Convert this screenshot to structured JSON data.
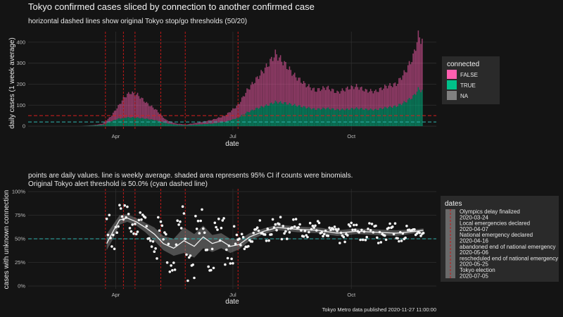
{
  "title": "Tokyo confirmed cases sliced by connection to another confirmed case",
  "caption": "Tokyo Metro data published 2020-11-27 11:00:00",
  "colors": {
    "false": "#ff5fb0",
    "true": "#00c08a",
    "na": "#808080",
    "threshold_red": "#d62020",
    "threshold_cyan": "#2fb5b0",
    "event_line": "#c01818"
  },
  "chart_data": [
    {
      "type": "area",
      "subtitle": "horizontal dashed lines show original Tokyo stop/go thresholds (50/20)",
      "xlabel": "date",
      "ylabel": "daily cases (1 week average)",
      "x_ticks": [
        "Apr",
        "Jul",
        "Oct"
      ],
      "x_tick_dates": [
        "2020-04-01",
        "2020-07-01",
        "2020-10-01"
      ],
      "xlim": [
        "2020-01-24",
        "2020-12-06"
      ],
      "y_ticks": [
        "0",
        "100",
        "200",
        "300",
        "400"
      ],
      "ylim": [
        -20,
        450
      ],
      "thresholds": [
        50,
        20
      ],
      "series_names": [
        "FALSE",
        "TRUE",
        "NA"
      ],
      "points": [
        {
          "date": "2020-03-15",
          "total": 5,
          "connected": 3
        },
        {
          "date": "2020-03-22",
          "total": 12,
          "connected": 6
        },
        {
          "date": "2020-03-28",
          "total": 45,
          "connected": 22
        },
        {
          "date": "2020-04-03",
          "total": 95,
          "connected": 35
        },
        {
          "date": "2020-04-08",
          "total": 140,
          "connected": 40
        },
        {
          "date": "2020-04-12",
          "total": 160,
          "connected": 42
        },
        {
          "date": "2020-04-18",
          "total": 150,
          "connected": 40
        },
        {
          "date": "2020-04-25",
          "total": 110,
          "connected": 35
        },
        {
          "date": "2020-05-02",
          "total": 80,
          "connected": 28
        },
        {
          "date": "2020-05-10",
          "total": 30,
          "connected": 14
        },
        {
          "date": "2020-05-18",
          "total": 12,
          "connected": 6
        },
        {
          "date": "2020-05-26",
          "total": 8,
          "connected": 4
        },
        {
          "date": "2020-06-05",
          "total": 18,
          "connected": 8
        },
        {
          "date": "2020-06-15",
          "total": 30,
          "connected": 12
        },
        {
          "date": "2020-06-25",
          "total": 50,
          "connected": 20
        },
        {
          "date": "2020-07-05",
          "total": 100,
          "connected": 40
        },
        {
          "date": "2020-07-12",
          "total": 170,
          "connected": 65
        },
        {
          "date": "2020-07-20",
          "total": 230,
          "connected": 85
        },
        {
          "date": "2020-07-28",
          "total": 290,
          "connected": 100
        },
        {
          "date": "2020-08-03",
          "total": 345,
          "connected": 115
        },
        {
          "date": "2020-08-10",
          "total": 300,
          "connected": 110
        },
        {
          "date": "2020-08-18",
          "total": 240,
          "connected": 100
        },
        {
          "date": "2020-08-26",
          "total": 200,
          "connected": 90
        },
        {
          "date": "2020-09-03",
          "total": 170,
          "connected": 80
        },
        {
          "date": "2020-09-12",
          "total": 185,
          "connected": 85
        },
        {
          "date": "2020-09-20",
          "total": 160,
          "connected": 78
        },
        {
          "date": "2020-09-28",
          "total": 180,
          "connected": 80
        },
        {
          "date": "2020-10-05",
          "total": 190,
          "connected": 85
        },
        {
          "date": "2020-10-12",
          "total": 170,
          "connected": 80
        },
        {
          "date": "2020-10-20",
          "total": 165,
          "connected": 78
        },
        {
          "date": "2020-10-28",
          "total": 190,
          "connected": 88
        },
        {
          "date": "2020-11-05",
          "total": 200,
          "connected": 95
        },
        {
          "date": "2020-11-12",
          "total": 260,
          "connected": 115
        },
        {
          "date": "2020-11-18",
          "total": 330,
          "connected": 140
        },
        {
          "date": "2020-11-22",
          "total": 430,
          "connected": 175
        },
        {
          "date": "2020-11-25",
          "total": 410,
          "connected": 170
        }
      ]
    },
    {
      "type": "scatter",
      "subtitle_lines": [
        "points are daily values. line is weekly average. shaded area represents 95% CI if counts were binomials.",
        "Original Tokyo alert threshold is 50.0% (cyan dashed line)"
      ],
      "xlabel": "date",
      "ylabel": "cases with unknown connection",
      "x_ticks": [
        "Apr",
        "Jul",
        "Oct"
      ],
      "x_tick_dates": [
        "2020-04-01",
        "2020-07-01",
        "2020-10-01"
      ],
      "xlim": [
        "2020-01-24",
        "2020-12-06"
      ],
      "y_ticks": [
        "0%",
        "25%",
        "50%",
        "75%",
        "100%"
      ],
      "ylim": [
        -0.03,
        1.03
      ],
      "threshold": 0.5,
      "average": [
        {
          "date": "2020-03-25",
          "y": 0.45,
          "lo": 0.38,
          "hi": 0.55
        },
        {
          "date": "2020-03-30",
          "y": 0.58,
          "lo": 0.5,
          "hi": 0.65
        },
        {
          "date": "2020-04-04",
          "y": 0.7,
          "lo": 0.65,
          "hi": 0.75
        },
        {
          "date": "2020-04-10",
          "y": 0.72,
          "lo": 0.68,
          "hi": 0.76
        },
        {
          "date": "2020-04-17",
          "y": 0.68,
          "lo": 0.64,
          "hi": 0.72
        },
        {
          "date": "2020-04-24",
          "y": 0.62,
          "lo": 0.57,
          "hi": 0.67
        },
        {
          "date": "2020-05-01",
          "y": 0.55,
          "lo": 0.48,
          "hi": 0.62
        },
        {
          "date": "2020-05-08",
          "y": 0.45,
          "lo": 0.38,
          "hi": 0.53
        },
        {
          "date": "2020-05-16",
          "y": 0.4,
          "lo": 0.32,
          "hi": 0.5
        },
        {
          "date": "2020-05-24",
          "y": 0.48,
          "lo": 0.35,
          "hi": 0.62
        },
        {
          "date": "2020-06-01",
          "y": 0.42,
          "lo": 0.3,
          "hi": 0.55
        },
        {
          "date": "2020-06-08",
          "y": 0.52,
          "lo": 0.4,
          "hi": 0.64
        },
        {
          "date": "2020-06-15",
          "y": 0.45,
          "lo": 0.36,
          "hi": 0.54
        },
        {
          "date": "2020-06-22",
          "y": 0.48,
          "lo": 0.4,
          "hi": 0.56
        },
        {
          "date": "2020-06-29",
          "y": 0.42,
          "lo": 0.35,
          "hi": 0.5
        },
        {
          "date": "2020-07-06",
          "y": 0.44,
          "lo": 0.39,
          "hi": 0.49
        },
        {
          "date": "2020-07-14",
          "y": 0.52,
          "lo": 0.48,
          "hi": 0.56
        },
        {
          "date": "2020-07-25",
          "y": 0.58,
          "lo": 0.55,
          "hi": 0.61
        },
        {
          "date": "2020-08-05",
          "y": 0.62,
          "lo": 0.59,
          "hi": 0.65
        },
        {
          "date": "2020-08-20",
          "y": 0.6,
          "lo": 0.57,
          "hi": 0.63
        },
        {
          "date": "2020-09-05",
          "y": 0.59,
          "lo": 0.56,
          "hi": 0.62
        },
        {
          "date": "2020-09-20",
          "y": 0.56,
          "lo": 0.53,
          "hi": 0.59
        },
        {
          "date": "2020-10-05",
          "y": 0.58,
          "lo": 0.55,
          "hi": 0.61
        },
        {
          "date": "2020-10-20",
          "y": 0.57,
          "lo": 0.54,
          "hi": 0.6
        },
        {
          "date": "2020-11-05",
          "y": 0.56,
          "lo": 0.53,
          "hi": 0.59
        },
        {
          "date": "2020-11-20",
          "y": 0.58,
          "lo": 0.56,
          "hi": 0.6
        },
        {
          "date": "2020-11-26",
          "y": 0.59,
          "lo": 0.57,
          "hi": 0.61
        }
      ],
      "daily_points_note": "daily values scatter around the weekly average"
    }
  ],
  "legend_connected": {
    "title": "connected",
    "items": [
      "FALSE",
      "TRUE",
      "NA"
    ]
  },
  "legend_dates": {
    "title": "dates",
    "events": [
      {
        "label": "Olympics delay finalized",
        "date": "2020-03-24"
      },
      {
        "label": "Local emergencies declared",
        "date": "2020-04-07"
      },
      {
        "label": "National emergency declared",
        "date": "2020-04-16"
      },
      {
        "label": "abandoned end of national emergency",
        "date": "2020-05-06"
      },
      {
        "label": "rescheduled end of national emergency",
        "date": "2020-05-25"
      },
      {
        "label": "Tokyo election",
        "date": "2020-07-05"
      }
    ]
  }
}
